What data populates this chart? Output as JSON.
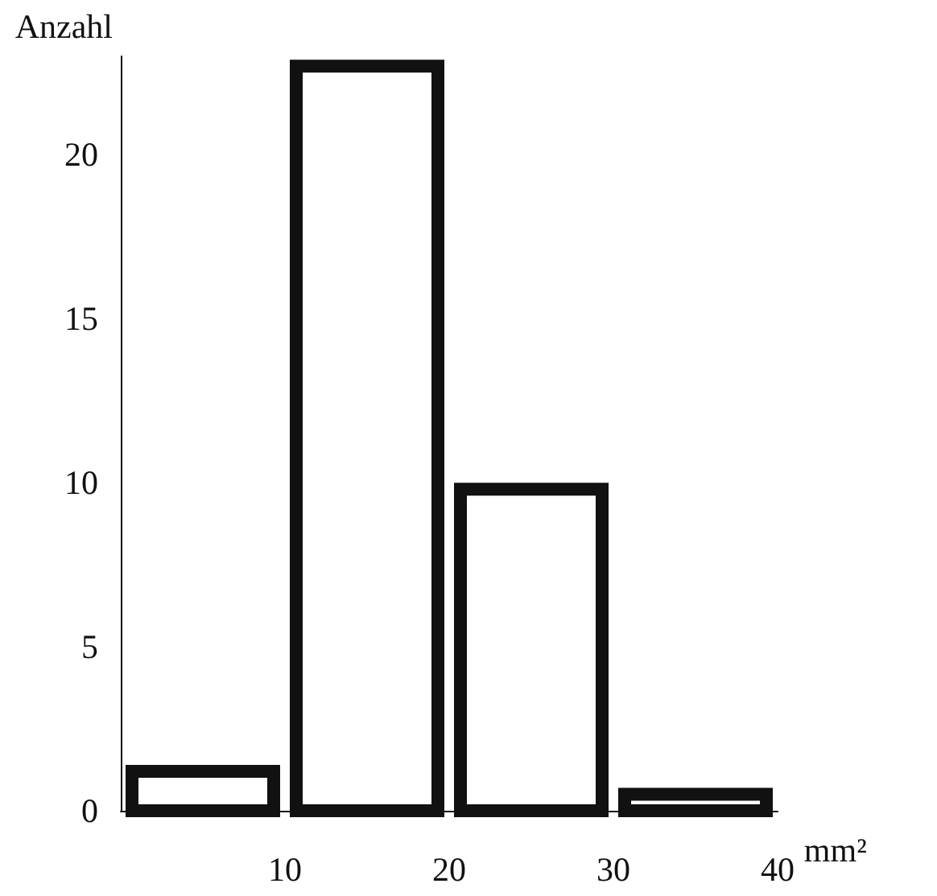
{
  "chart_data": {
    "type": "histogram",
    "xlabel": "mm²",
    "ylabel": "Anzahl",
    "bins": [
      0,
      10,
      20,
      30,
      40
    ],
    "values": [
      1.2,
      22.7,
      9.8,
      0.5
    ],
    "color": "#111111",
    "xlim": [
      0,
      40
    ],
    "xticks": [
      10,
      20,
      30,
      40
    ],
    "ylim": [
      0,
      23
    ],
    "yticks": [
      0,
      5,
      10,
      15,
      20
    ]
  }
}
